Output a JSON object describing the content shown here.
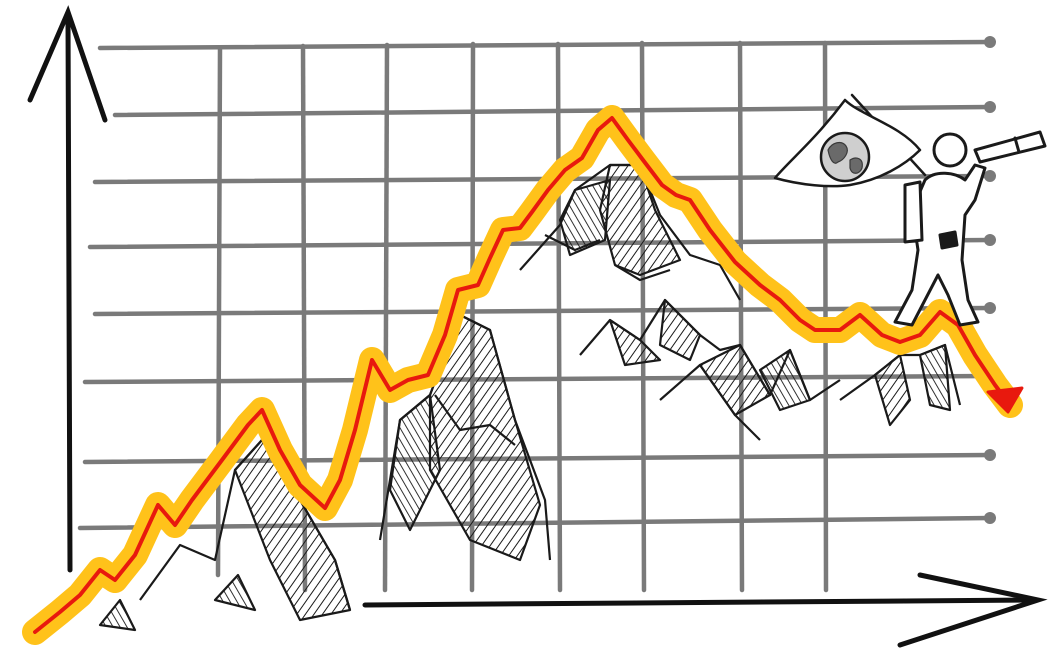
{
  "colors": {
    "background": "#ffffff",
    "grid": "#7a7a7a",
    "axis": "#111111",
    "ink": "#1a1a1a",
    "glow": "#ffc21a",
    "line": "#e8190e",
    "arrowhead": "#e8190e"
  },
  "icons": {
    "y_axis": "arrow-up-icon",
    "x_axis": "arrow-right-icon",
    "flag": "globe-flag-icon",
    "explorer": "telescope-explorer-icon"
  },
  "sketch": {
    "description_visible_text": ""
  }
}
